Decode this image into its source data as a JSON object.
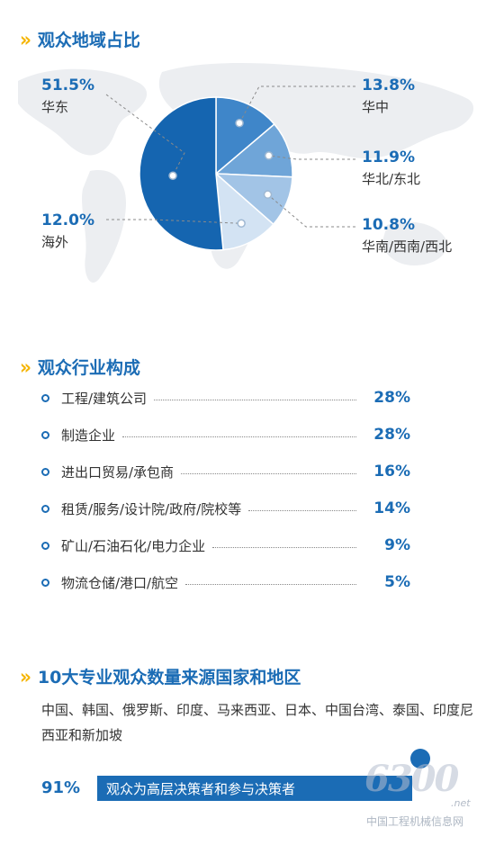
{
  "sections": {
    "region_title": "观众地域占比",
    "industry_title": "观众行业构成",
    "countries_title": "10大专业观众数量来源国家和地区"
  },
  "chart_data": [
    {
      "type": "pie",
      "title": "观众地域占比",
      "slices": [
        {
          "name": "华东",
          "value": 51.5,
          "label": "51.5%",
          "color": "#1565b0"
        },
        {
          "name": "华中",
          "value": 13.8,
          "label": "13.8%",
          "color": "#3f86c9"
        },
        {
          "name": "华北/东北",
          "value": 11.9,
          "label": "11.9%",
          "color": "#6fa5d8"
        },
        {
          "name": "华南/西南/西北",
          "value": 10.8,
          "label": "10.8%",
          "color": "#a2c4e6"
        },
        {
          "name": "海外",
          "value": 12.0,
          "label": "12.0%",
          "color": "#d3e3f3"
        }
      ]
    },
    {
      "type": "table",
      "title": "观众行业构成",
      "rows": [
        {
          "name": "工程/建筑公司",
          "value": "28%"
        },
        {
          "name": "制造企业",
          "value": "28%"
        },
        {
          "name": "进出口贸易/承包商",
          "value": "16%"
        },
        {
          "name": "租赁/服务/设计院/政府/院校等",
          "value": "14%"
        },
        {
          "name": "矿山/石油石化/电力企业",
          "value": "9%"
        },
        {
          "name": "物流仓储/港口/航空",
          "value": "5%"
        }
      ]
    }
  ],
  "countries_text": "中国、韩国、俄罗斯、印度、马来西亚、日本、中国台湾、泰国、印度尼西亚和新加坡",
  "stat": {
    "pct": "91%",
    "text": "观众为高层决策者和参与决策者"
  },
  "watermark": {
    "big": "6300",
    "net": ".net",
    "cn": "中国工程机械信息网"
  },
  "colors": {
    "accent": "#1b6cb5",
    "chevron": "#f5b400"
  }
}
